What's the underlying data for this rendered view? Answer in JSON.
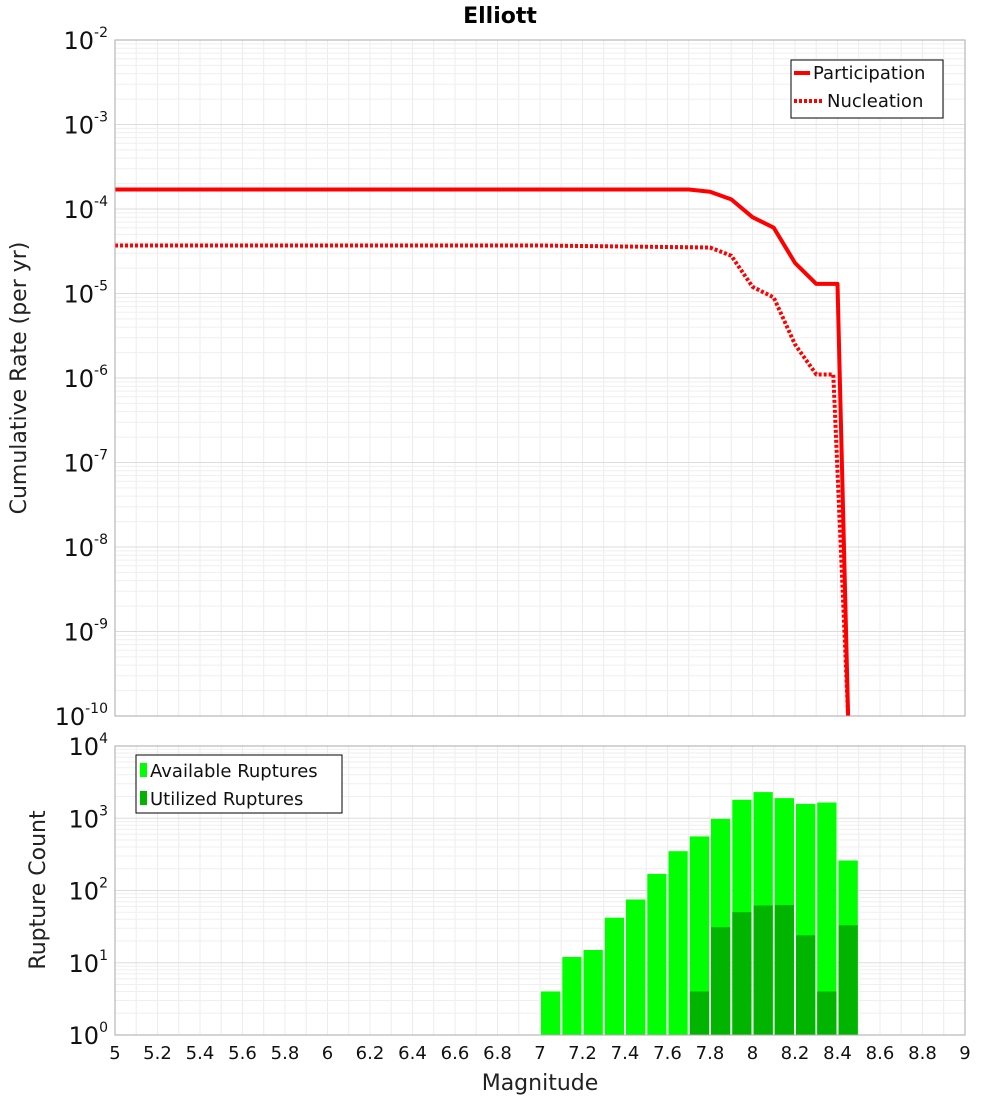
{
  "chart_data": [
    {
      "type": "line",
      "title": "Elliott",
      "xlabel": "",
      "ylabel": "Cumulative Rate (per yr)",
      "xlim": [
        5,
        9
      ],
      "ylim_log10": [
        -10,
        -2
      ],
      "yscale": "log",
      "y_tick_base": "10",
      "y_tick_exponents": [
        "-2",
        "-3",
        "-4",
        "-5",
        "-6",
        "-7",
        "-8",
        "-9",
        "-10"
      ],
      "grid": true,
      "legend_position": "top-right",
      "series": [
        {
          "name": "Participation",
          "style": "solid",
          "color": "#ff0000",
          "x": [
            5.0,
            7.0,
            7.7,
            7.8,
            7.9,
            8.0,
            8.1,
            8.2,
            8.3,
            8.4,
            8.45
          ],
          "y": [
            0.00017,
            0.00017,
            0.00017,
            0.00016,
            0.00013,
            8e-05,
            6e-05,
            2.3e-05,
            1.3e-05,
            1.3e-05,
            1e-10
          ]
        },
        {
          "name": "Nucleation",
          "style": "dotted",
          "color": "#ff0000",
          "x": [
            5.0,
            7.0,
            7.8,
            7.9,
            8.0,
            8.1,
            8.2,
            8.3,
            8.38,
            8.45
          ],
          "y": [
            3.7e-05,
            3.7e-05,
            3.5e-05,
            2.8e-05,
            1.2e-05,
            9e-06,
            2.5e-06,
            1.1e-06,
            1.1e-06,
            1e-10
          ]
        }
      ]
    },
    {
      "type": "bar",
      "xlabel": "Magnitude",
      "ylabel": "Rupture Count",
      "xlim": [
        5,
        9
      ],
      "ylim_log10": [
        0,
        4
      ],
      "yscale": "log",
      "y_tick_base": "10",
      "y_tick_exponents": [
        "0",
        "1",
        "2",
        "3",
        "4"
      ],
      "x_ticks": [
        "5",
        "5.2",
        "5.4",
        "5.6",
        "5.8",
        "6",
        "6.2",
        "6.4",
        "6.6",
        "6.8",
        "7",
        "7.2",
        "7.4",
        "7.6",
        "7.8",
        "8",
        "8.2",
        "8.4",
        "8.6",
        "8.8",
        "9"
      ],
      "bin_width": 0.1,
      "legend_position": "top-left",
      "categories": [
        7.05,
        7.15,
        7.25,
        7.35,
        7.45,
        7.55,
        7.65,
        7.75,
        7.85,
        7.95,
        8.05,
        8.15,
        8.25,
        8.35,
        8.45
      ],
      "series": [
        {
          "name": "Available Ruptures",
          "color": "#00ff00",
          "values": [
            4,
            12,
            15,
            42,
            75,
            170,
            350,
            560,
            980,
            1800,
            2300,
            1900,
            1580,
            1650,
            260
          ]
        },
        {
          "name": "Utilized Ruptures",
          "color": "#00b400",
          "values": [
            0,
            0,
            0,
            0,
            0,
            0,
            0,
            4,
            31,
            50,
            62,
            63,
            24,
            4,
            33
          ]
        }
      ]
    }
  ]
}
